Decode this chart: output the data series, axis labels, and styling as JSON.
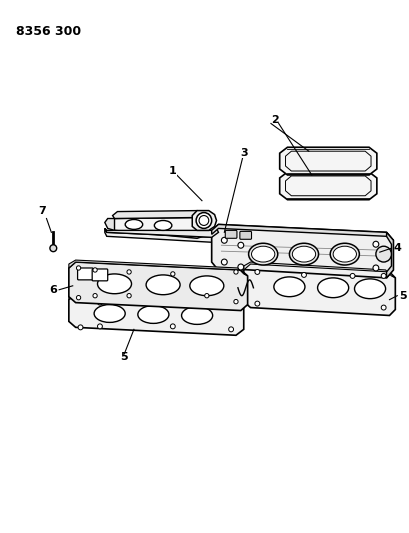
{
  "title": "8356 300",
  "bg_color": "#ffffff",
  "line_color": "#000000",
  "title_fontsize": 9,
  "label_fontsize": 8,
  "figsize": [
    4.1,
    5.33
  ],
  "dpi": 100
}
